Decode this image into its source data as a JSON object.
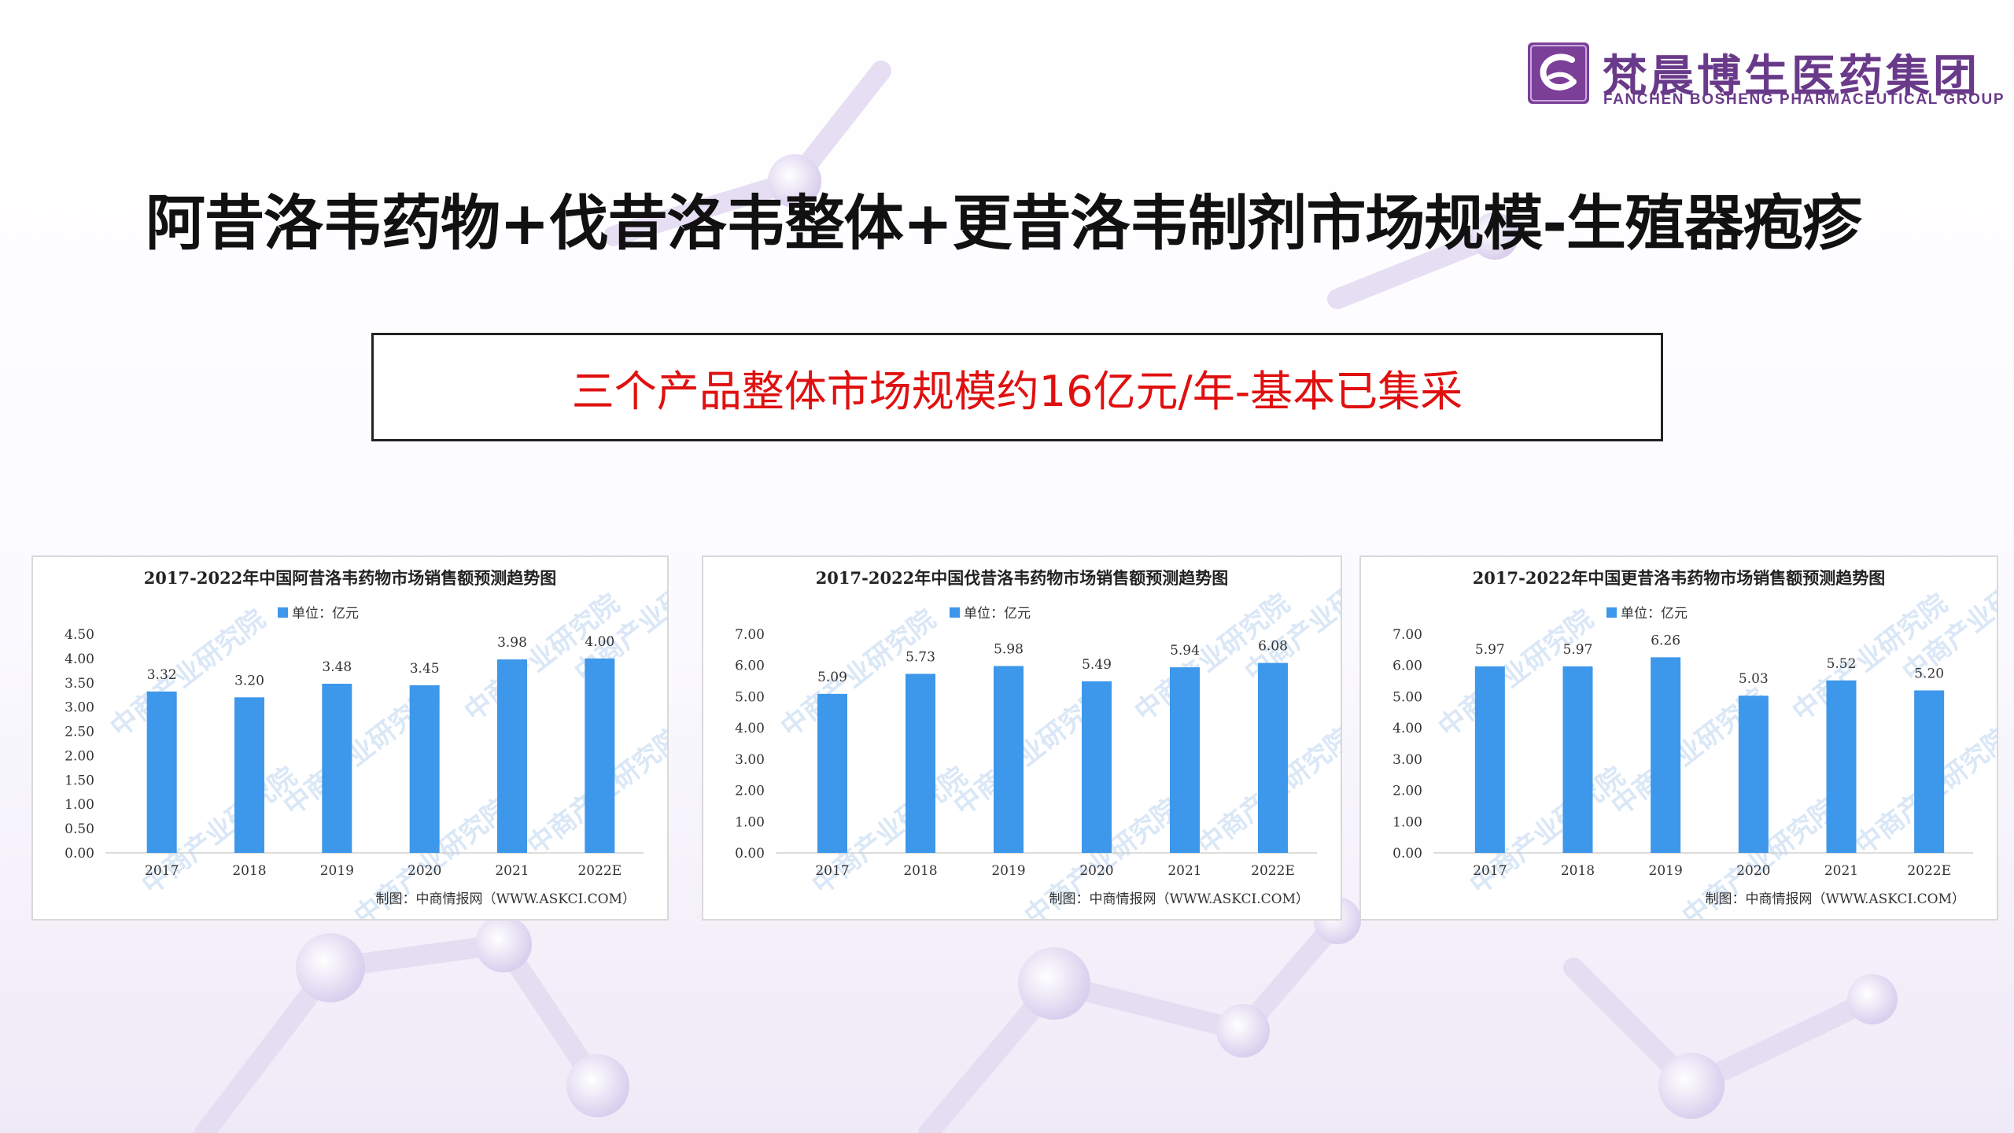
{
  "logo": {
    "name_cn": "梵晨博生医药集团",
    "name_en": "FANCHEN BOSHENG PHARMACEUTICAL GROUP"
  },
  "title": "阿昔洛韦药物+伐昔洛韦整体+更昔洛韦制剂市场规模-生殖器疱疹",
  "summary": "三个产品整体市场规模约16亿元/年-基本已集采",
  "colors": {
    "bar": "#3d97ea",
    "summary_text": "#e01010",
    "logo": "#6a3a8a"
  },
  "chart_data": [
    {
      "type": "bar",
      "title": "2017-2022年中国阿昔洛韦药物市场销售额预测趋势图",
      "legend": "单位：亿元",
      "categories": [
        "2017",
        "2018",
        "2019",
        "2020",
        "2021",
        "2022E"
      ],
      "values": [
        3.32,
        3.2,
        3.48,
        3.45,
        3.98,
        4.0
      ],
      "value_labels": [
        "3.32",
        "3.20",
        "3.48",
        "3.45",
        "3.98",
        "4.00"
      ],
      "ylim": [
        0,
        4.5
      ],
      "yticks": [
        "0.00",
        "0.50",
        "1.00",
        "1.50",
        "2.00",
        "2.50",
        "3.00",
        "3.50",
        "4.00",
        "4.50"
      ],
      "credit": "制图：中商情报网（WWW.ASKCI.COM）",
      "watermark": "中商产业研究院"
    },
    {
      "type": "bar",
      "title": "2017-2022年中国伐昔洛韦药物市场销售额预测趋势图",
      "legend": "单位：亿元",
      "categories": [
        "2017",
        "2018",
        "2019",
        "2020",
        "2021",
        "2022E"
      ],
      "values": [
        5.09,
        5.73,
        5.98,
        5.49,
        5.94,
        6.08
      ],
      "value_labels": [
        "5.09",
        "5.73",
        "5.98",
        "5.49",
        "5.94",
        "6.08"
      ],
      "ylim": [
        0,
        7
      ],
      "yticks": [
        "0.00",
        "1.00",
        "2.00",
        "3.00",
        "4.00",
        "5.00",
        "6.00",
        "7.00"
      ],
      "credit": "制图：中商情报网（WWW.ASKCI.COM）",
      "watermark": "中商产业研究院"
    },
    {
      "type": "bar",
      "title": "2017-2022年中国更昔洛韦药物市场销售额预测趋势图",
      "legend": "单位：亿元",
      "categories": [
        "2017",
        "2018",
        "2019",
        "2020",
        "2021",
        "2022E"
      ],
      "values": [
        5.97,
        5.97,
        6.26,
        5.03,
        5.52,
        5.2
      ],
      "value_labels": [
        "5.97",
        "5.97",
        "6.26",
        "5.03",
        "5.52",
        "5.20"
      ],
      "ylim": [
        0,
        7
      ],
      "yticks": [
        "0.00",
        "1.00",
        "2.00",
        "3.00",
        "4.00",
        "5.00",
        "6.00",
        "7.00"
      ],
      "credit": "制图：中商情报网（WWW.ASKCI.COM）",
      "watermark": "中商产业研究院"
    }
  ]
}
